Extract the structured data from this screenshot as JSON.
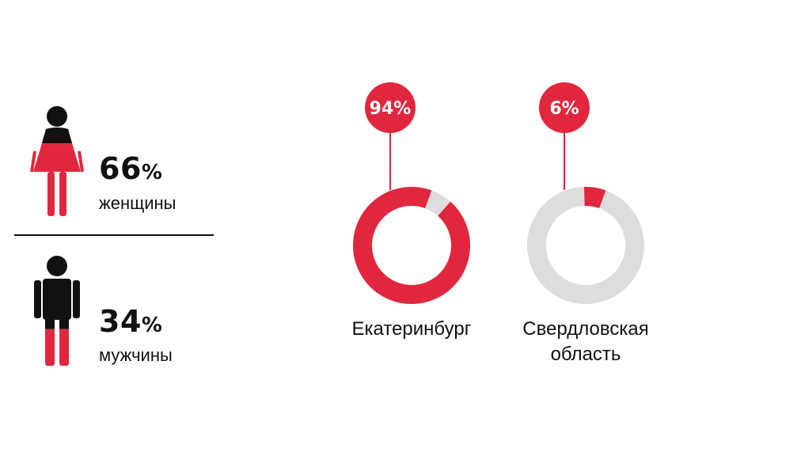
{
  "colors": {
    "accent": "#e1273d",
    "dark": "#111111",
    "track": "#dddddd"
  },
  "gender": {
    "women": {
      "value": 66,
      "percent_text": "66",
      "percent_sign": "%",
      "label": "женщины",
      "icon": "woman-figure-icon"
    },
    "men": {
      "value": 34,
      "percent_text": "34",
      "percent_sign": "%",
      "label": "мужчины",
      "icon": "man-figure-icon"
    }
  },
  "chart_data": [
    {
      "type": "pie",
      "subtype": "donut",
      "category": "Екатеринбург",
      "values": [
        94,
        6
      ],
      "label_text": "94%",
      "city_lines": [
        "Екатеринбург"
      ]
    },
    {
      "type": "pie",
      "subtype": "donut",
      "category": "Свердловская область",
      "values": [
        6,
        94
      ],
      "label_text": "6%",
      "city_lines": [
        "Свердловская",
        "область"
      ]
    }
  ]
}
